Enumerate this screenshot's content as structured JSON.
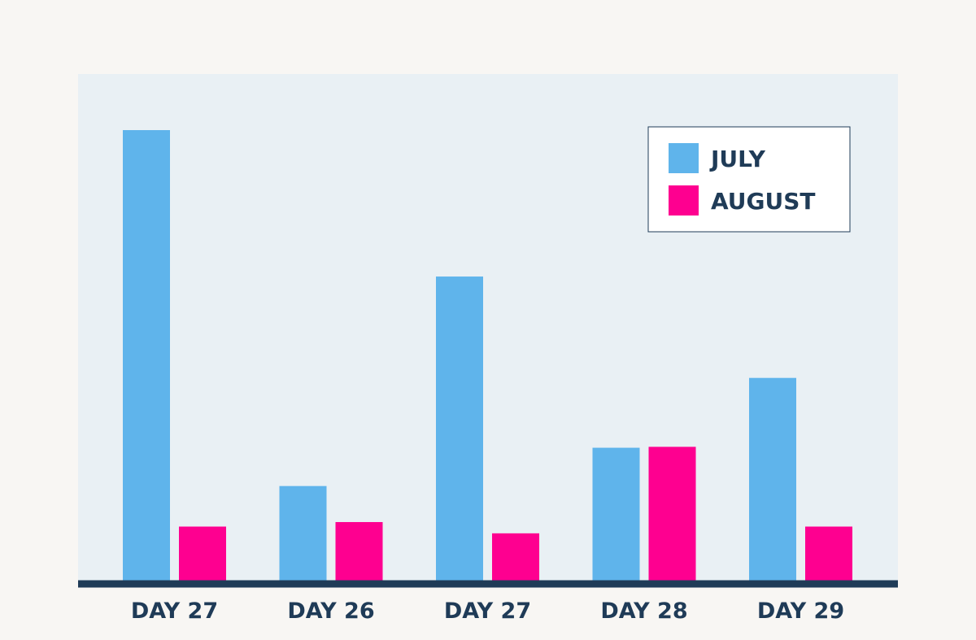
{
  "chart_data": {
    "type": "bar",
    "categories": [
      "DAY 27",
      "DAY 26",
      "DAY 27",
      "DAY 28",
      "DAY 29"
    ],
    "series": [
      {
        "name": "JULY",
        "values": [
          100,
          21,
          67.5,
          29.5,
          45
        ],
        "color": "#5fb4eb"
      },
      {
        "name": "AUGUST",
        "values": [
          12,
          13,
          10.5,
          29.7,
          12
        ],
        "color": "#fe0090"
      }
    ],
    "title": "",
    "xlabel": "",
    "ylabel": "",
    "ylim": [
      0,
      112
    ],
    "grid": false,
    "legend_position": "top-right"
  },
  "colors": {
    "page_background": "#f8f6f3",
    "plot_background": "#e9f0f4",
    "axis": "#1f3b57",
    "text": "#1f3b57"
  }
}
